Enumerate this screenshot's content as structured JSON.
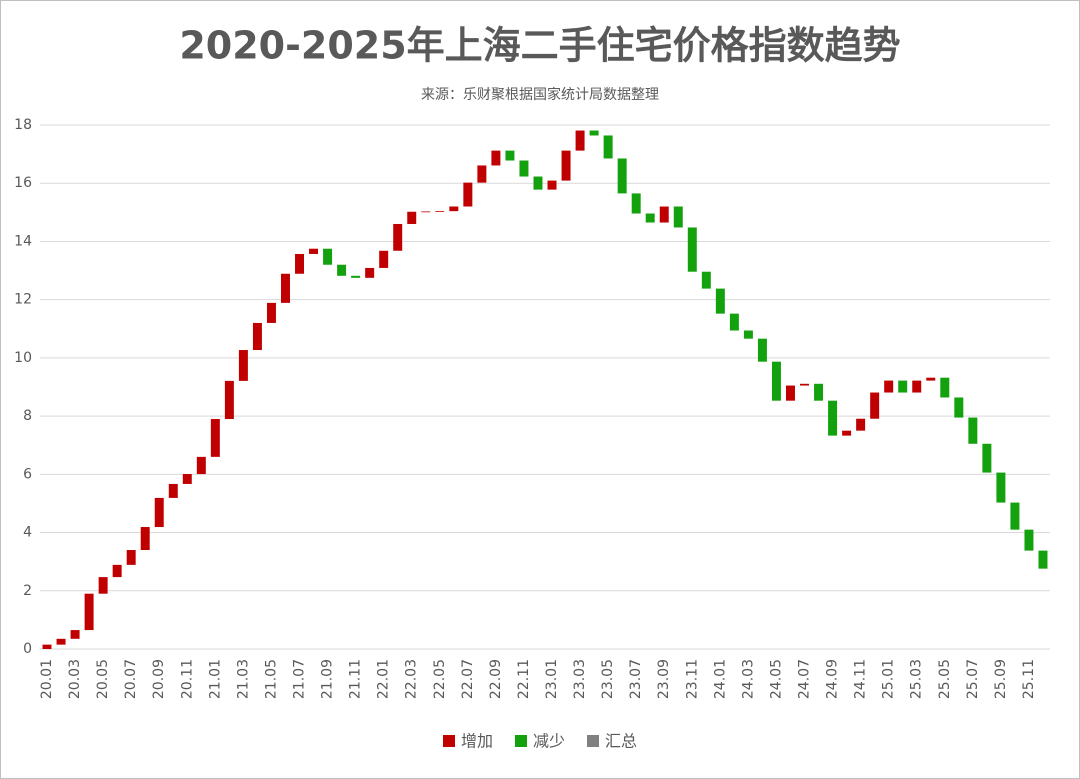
{
  "chart_data": {
    "type": "waterfall",
    "title": "2020-2025年上海二手住宅价格指数趋势",
    "subtitle": "来源：乐财聚根据国家统计局数据整理",
    "categories": [
      "20.01",
      null,
      "20.03",
      null,
      "20.05",
      null,
      "20.07",
      null,
      "20.09",
      null,
      "20.11",
      null,
      "21.01",
      null,
      "21.03",
      null,
      "21.05",
      null,
      "21.07",
      null,
      "21.09",
      null,
      "21.11",
      null,
      "22.01",
      null,
      "22.03",
      null,
      "22.05",
      null,
      "22.07",
      null,
      "22.09",
      null,
      "22.11",
      null,
      "23.01",
      null,
      "23.03",
      null,
      "23.05",
      null,
      "23.07",
      null,
      "23.09",
      null,
      "23.11",
      null,
      "24.01",
      null,
      "24.03",
      null,
      "24.05",
      null,
      "24.07",
      null,
      "24.09",
      null,
      "24.11",
      null,
      "25.01",
      null,
      "25.03",
      null,
      "25.05",
      null,
      "25.07",
      null,
      "25.09",
      null,
      "25.11",
      null
    ],
    "values": [
      0.15,
      0.2,
      0.3,
      1.25,
      0.57,
      0.42,
      0.51,
      0.79,
      1.0,
      0.48,
      0.34,
      0.59,
      1.3,
      1.31,
      1.06,
      0.93,
      0.69,
      1.0,
      0.68,
      0.18,
      -0.55,
      -0.38,
      -0.07,
      0.34,
      0.59,
      0.92,
      0.42,
      0.01,
      0.01,
      0.16,
      0.82,
      0.59,
      0.51,
      -0.34,
      -0.55,
      -0.45,
      0.31,
      1.03,
      0.69,
      -0.17,
      -0.79,
      -1.2,
      -0.69,
      -0.31,
      0.55,
      -0.72,
      -1.52,
      -0.58,
      -0.86,
      -0.58,
      -0.28,
      -0.79,
      -1.34,
      0.52,
      0.06,
      -0.58,
      -1.2,
      0.17,
      0.41,
      0.9,
      0.41,
      -0.41,
      0.41,
      0.1,
      -0.68,
      -0.69,
      -0.9,
      -0.99,
      -1.03,
      -0.93,
      -0.72,
      -0.62
    ],
    "legend": [
      {
        "name": "增加",
        "color": "#c00000"
      },
      {
        "name": "减少",
        "color": "#13a10e"
      },
      {
        "name": "汇总",
        "color": "#808080"
      }
    ],
    "ylim": [
      0,
      18
    ],
    "yticks": [
      0,
      2,
      4,
      6,
      8,
      10,
      12,
      14,
      16,
      18
    ],
    "grid": true
  }
}
